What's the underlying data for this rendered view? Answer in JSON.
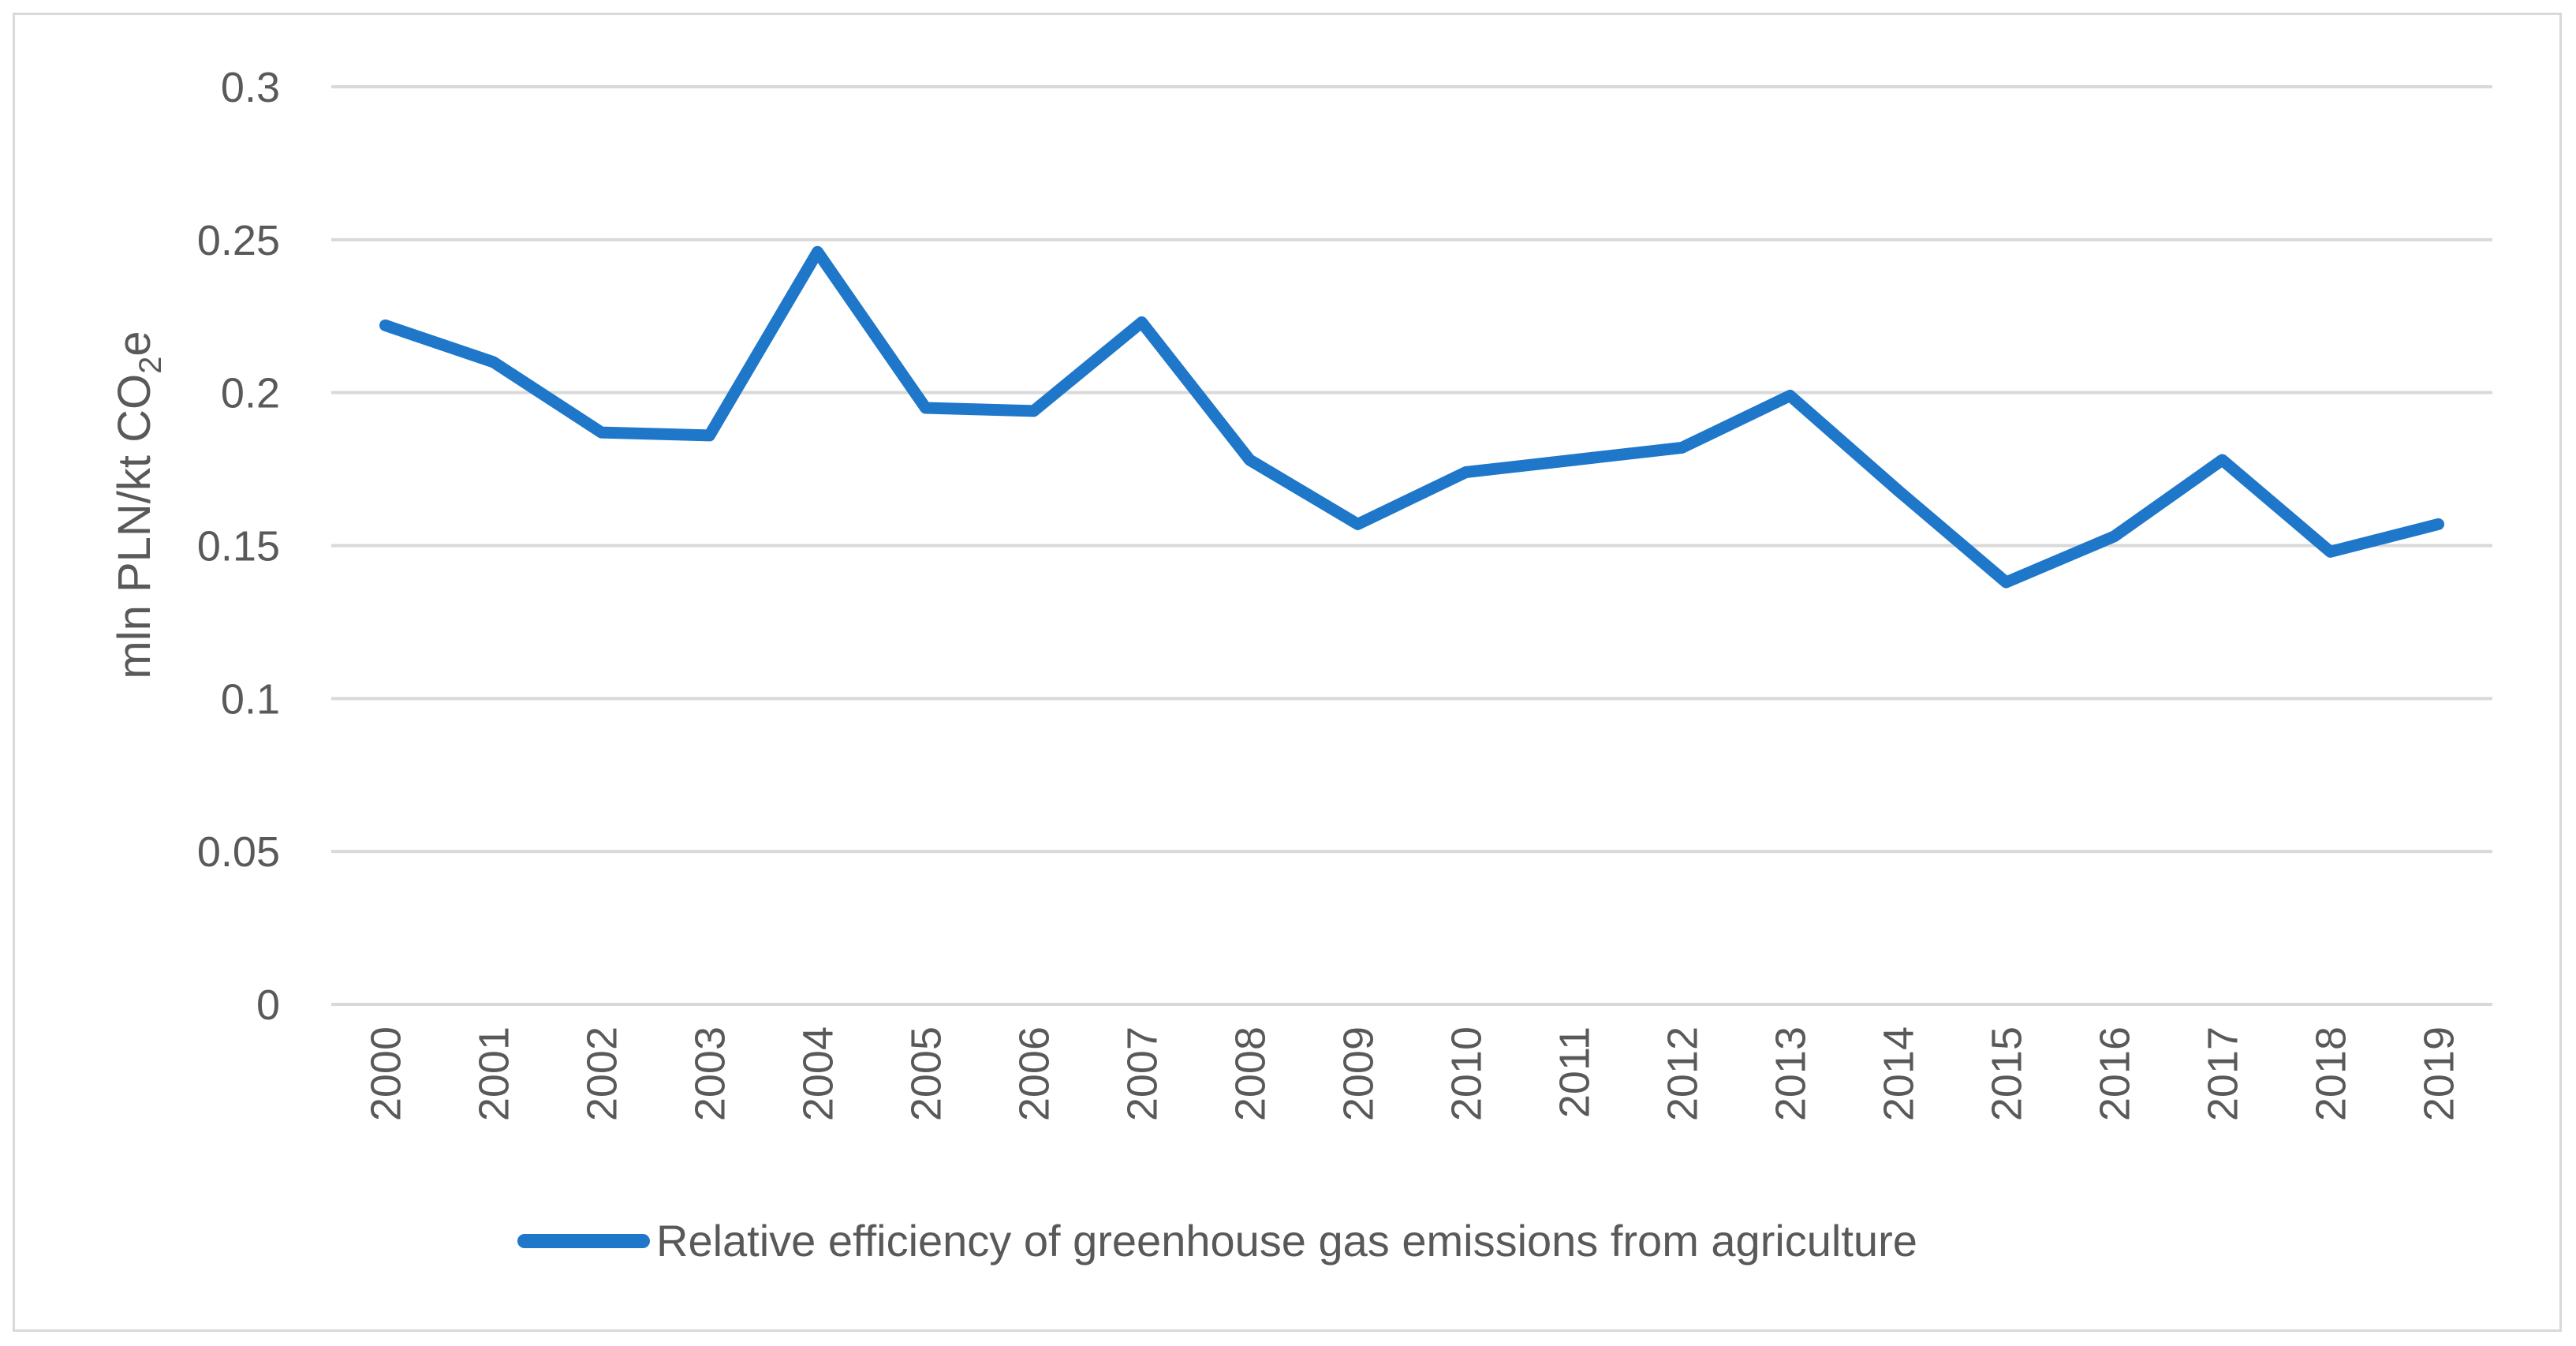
{
  "chart_data": {
    "type": "line",
    "title": "",
    "xlabel": "",
    "ylabel": "mln PLN/kt CO2e",
    "ylabel_parts": {
      "main": "mln PLN/kt CO",
      "subscript": "2",
      "suffix": "e"
    },
    "ylim": [
      0,
      0.3
    ],
    "yticks": [
      "0",
      "0.05",
      "0.1",
      "0.15",
      "0.2",
      "0.25",
      "0.3"
    ],
    "grid": true,
    "legend_position": "bottom",
    "categories": [
      "2000",
      "2001",
      "2002",
      "2003",
      "2004",
      "2005",
      "2006",
      "2007",
      "2008",
      "2009",
      "2010",
      "2011",
      "2012",
      "2013",
      "2014",
      "2015",
      "2016",
      "2017",
      "2018",
      "2019"
    ],
    "series": [
      {
        "name": "Relative efficiency of greenhouse gas emissions from agriculture",
        "color": "#1f77c9",
        "values": [
          0.222,
          0.21,
          0.187,
          0.186,
          0.246,
          0.195,
          0.194,
          0.223,
          0.178,
          0.157,
          0.174,
          0.178,
          0.182,
          0.199,
          0.168,
          0.138,
          0.153,
          0.178,
          0.148,
          0.157
        ]
      }
    ]
  },
  "colors": {
    "gridline": "#d9d9d9",
    "text": "#595959",
    "series": "#1f77c9"
  }
}
